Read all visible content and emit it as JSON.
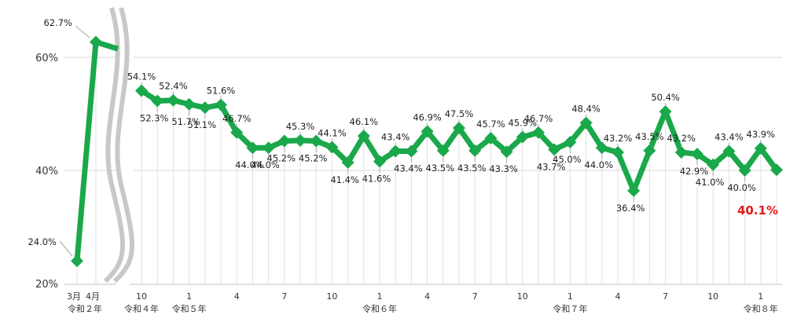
{
  "chart_data": {
    "type": "line",
    "title": "",
    "xlabel": "",
    "ylabel": "",
    "ylim": [
      20,
      65
    ],
    "broken_axis": true,
    "line_color": "#1aa84a",
    "highlight_color": "#e01b1b",
    "y_ticks": [
      "20%",
      "40%",
      "60%"
    ],
    "segments": [
      {
        "values": [
          24.0,
          62.7
        ],
        "labels": [
          "24.0%",
          "62.7%"
        ],
        "x_ticks": [
          "3月",
          "4月"
        ],
        "era_labels": [
          "令和２年"
        ]
      },
      {
        "values": [
          54.1,
          52.3,
          52.4,
          51.7,
          51.1,
          51.6,
          46.7,
          44.0,
          44.0,
          45.2,
          45.3,
          45.2,
          44.1,
          41.4,
          46.1,
          41.6,
          43.4,
          43.4,
          46.9,
          43.5,
          47.5,
          43.5,
          45.7,
          43.3,
          45.9,
          46.7,
          43.7,
          45.0,
          48.4,
          44.0,
          43.2,
          36.4,
          43.5,
          50.4,
          43.2,
          42.9,
          41.0,
          43.4,
          40.0,
          43.9,
          40.1
        ],
        "labels": [
          "54.1%",
          "52.3%",
          "52.4%",
          "51.7%",
          "51.1%",
          "51.6%",
          "46.7%",
          "44.0%",
          "44.0%",
          "45.2%",
          "45.3%",
          "45.2%",
          "44.1%",
          "41.4%",
          "46.1%",
          "41.6%",
          "43.4%",
          "43.4%",
          "46.9%",
          "43.5%",
          "47.5%",
          "43.5%",
          "45.7%",
          "43.3%",
          "45.9%",
          "46.7%",
          "43.7%",
          "45.0%",
          "48.4%",
          "44.0%",
          "43.2%",
          "36.4%",
          "43.5%",
          "50.4%",
          "43.2%",
          "42.9%",
          "41.0%",
          "43.4%",
          "40.0%",
          "43.9%",
          "40.1%"
        ],
        "x_ticks": [
          "10",
          "1",
          "4",
          "7",
          "10",
          "1",
          "4",
          "7",
          "10",
          "1",
          "4",
          "7",
          "10",
          "1"
        ],
        "era_labels": [
          "令和４年",
          "令和５年",
          "令和６年",
          "令和７年",
          "令和８年"
        ]
      }
    ]
  }
}
